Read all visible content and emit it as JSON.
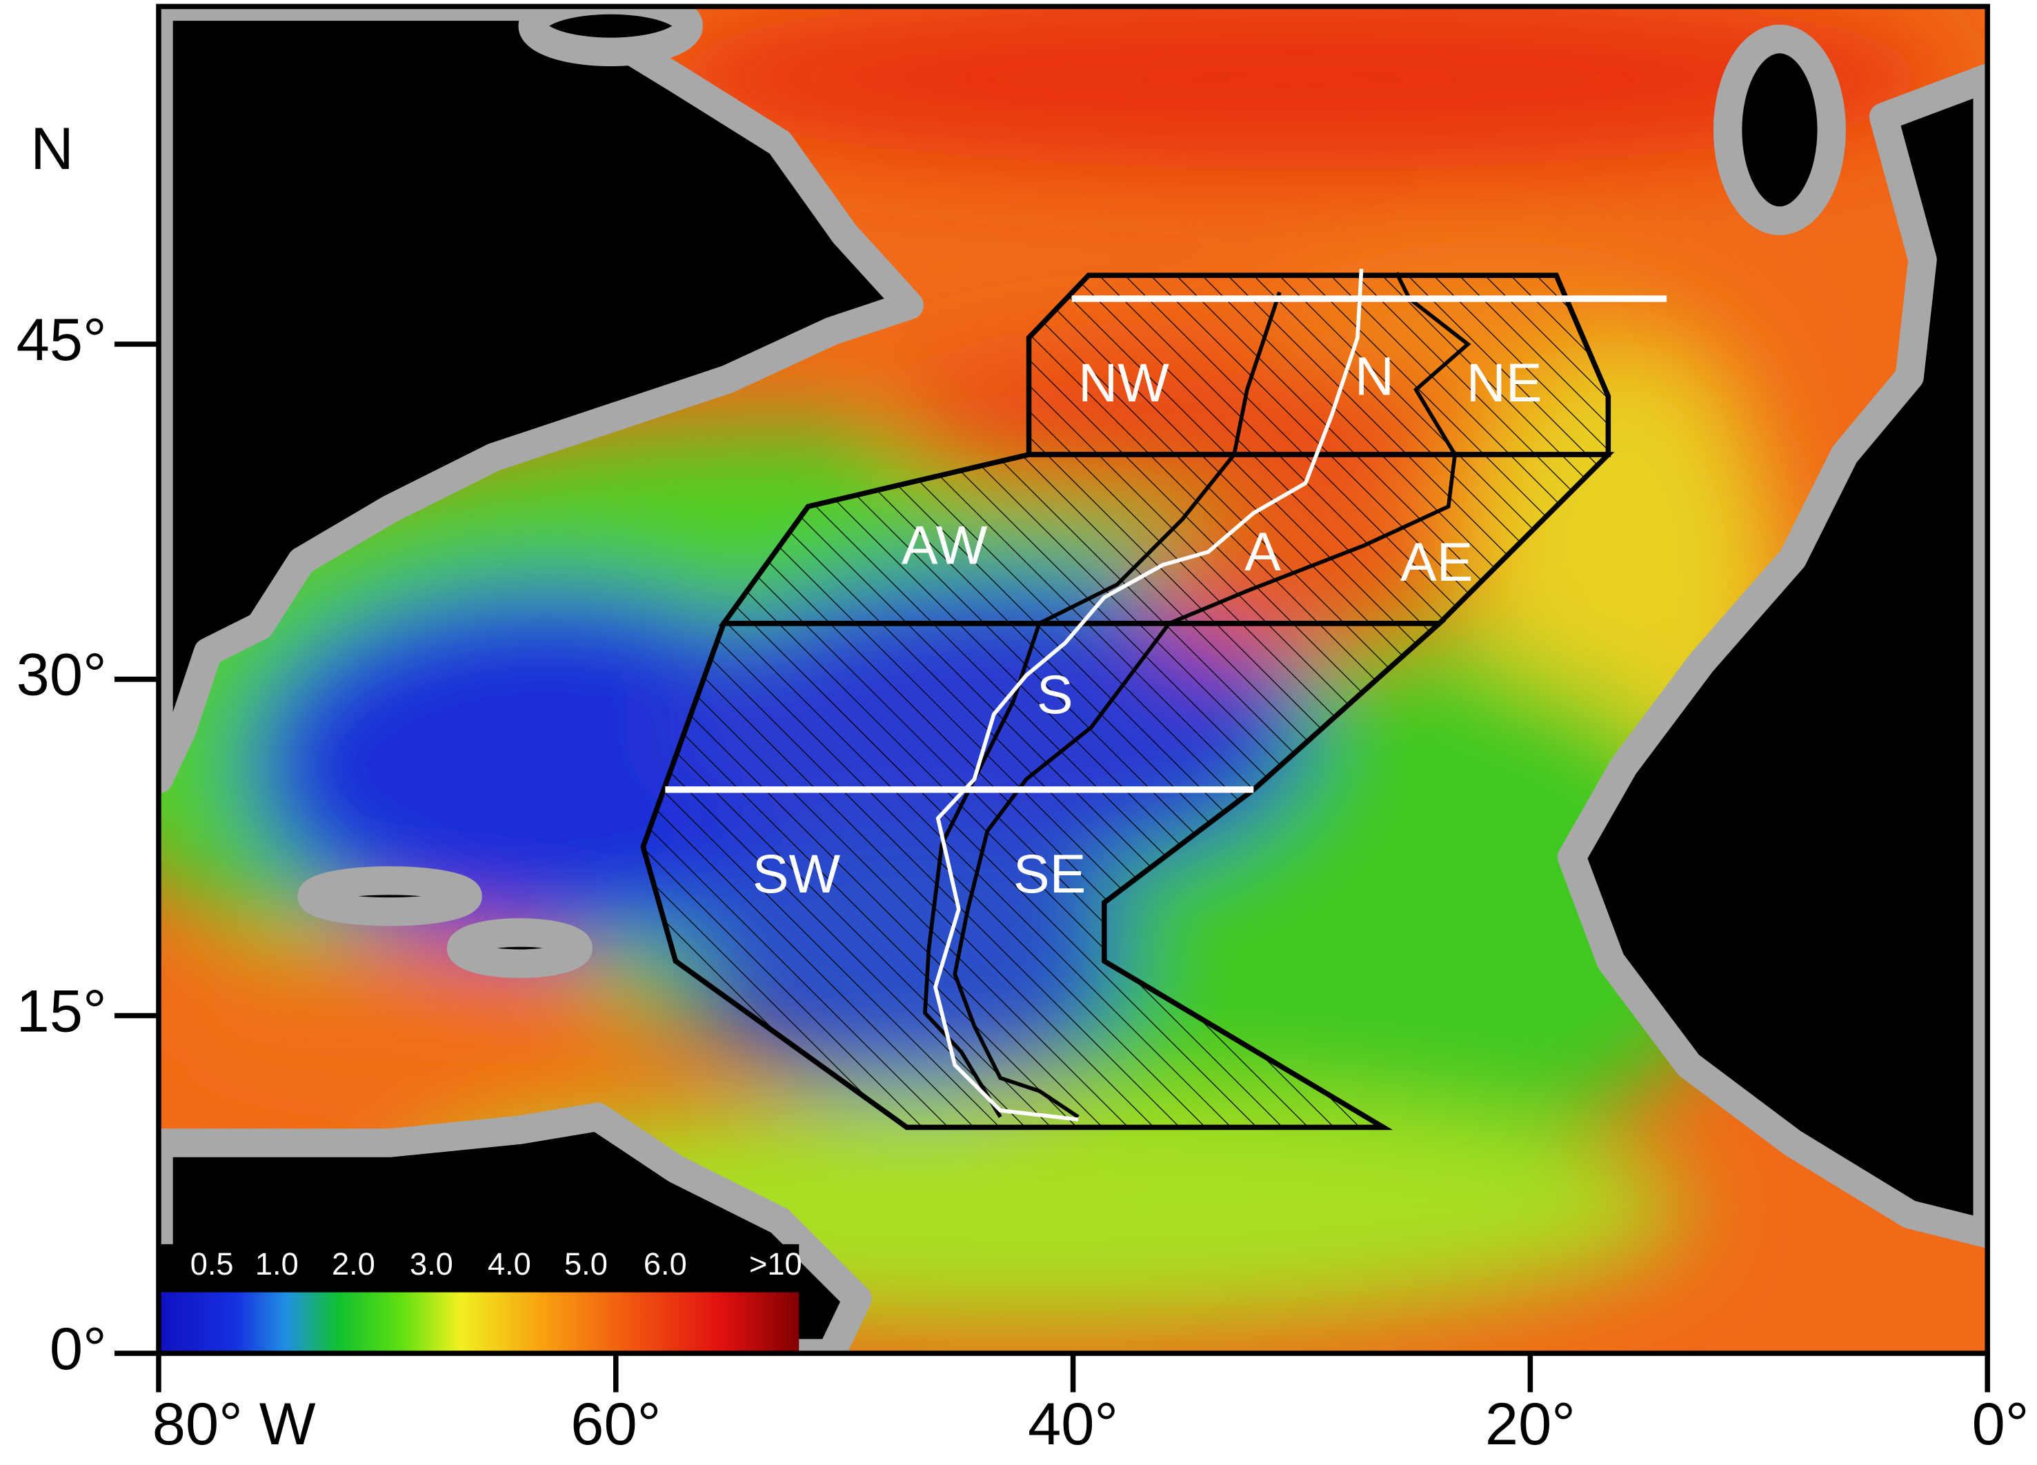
{
  "axes": {
    "y_label": "N",
    "y_ticks": [
      "45°",
      "30°",
      "15°",
      "0°"
    ],
    "x_ticks": [
      "80° W",
      "60°",
      "40°",
      "20°",
      "0°"
    ]
  },
  "regions": [
    "NW",
    "N",
    "NE",
    "AW",
    "A",
    "AE",
    "S",
    "SW",
    "SE"
  ],
  "colorbar": {
    "labels": [
      "0.5",
      "1.0",
      "2.0",
      "3.0",
      "4.0",
      "5.0",
      "6.0",
      ">10"
    ]
  }
}
